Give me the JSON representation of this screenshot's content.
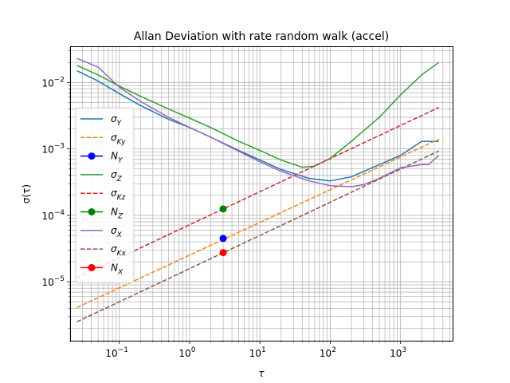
{
  "chart_data": {
    "type": "line",
    "title": "Allan Deviation with rate random walk (accel)",
    "xlabel": "τ",
    "ylabel": "σ(τ)",
    "xscale": "log",
    "yscale": "log",
    "xlim": [
      0.02,
      5500
    ],
    "ylim": [
      1.3e-06,
      0.035
    ],
    "grid": "major and minor",
    "legend_position": "center-left",
    "x_ticks": [
      {
        "v": 0.1,
        "base": "10",
        "exp": "−1"
      },
      {
        "v": 1,
        "base": "10",
        "exp": "0"
      },
      {
        "v": 10,
        "base": "10",
        "exp": "1"
      },
      {
        "v": 100,
        "base": "10",
        "exp": "2"
      },
      {
        "v": 1000,
        "base": "10",
        "exp": "3"
      }
    ],
    "y_ticks": [
      {
        "v": 1e-05,
        "base": "10",
        "exp": "−5"
      },
      {
        "v": 0.0001,
        "base": "10",
        "exp": "−4"
      },
      {
        "v": 0.001,
        "base": "10",
        "exp": "−3"
      },
      {
        "v": 0.01,
        "base": "10",
        "exp": "−2"
      }
    ],
    "series": [
      {
        "name": "σ_Y",
        "label_main": "σ",
        "label_sub": "Y",
        "color": "#1f77b4",
        "style": "solid",
        "x": [
          0.025,
          0.05,
          0.1,
          0.2,
          0.5,
          1,
          2,
          5,
          10,
          20,
          50,
          100,
          200,
          500,
          1000,
          2000,
          3500
        ],
        "y": [
          0.015,
          0.0105,
          0.0068,
          0.0045,
          0.0028,
          0.0021,
          0.0015,
          0.00095,
          0.00068,
          0.00049,
          0.00036,
          0.00033,
          0.00038,
          0.00058,
          0.0008,
          0.0013,
          0.0013
        ]
      },
      {
        "name": "σ_Ky",
        "label_main": "σ",
        "label_sub": "Ky",
        "color": "#ff7f0e",
        "style": "dashed",
        "x": [
          0.025,
          3500
        ],
        "y": [
          4.1e-06,
          0.0014
        ]
      },
      {
        "name": "N_Y",
        "label_main": "N",
        "label_sub": "Y",
        "color": "#0000ff",
        "style": "marker",
        "x": [
          3
        ],
        "y": [
          4.5e-05
        ]
      },
      {
        "name": "σ_Z",
        "label_main": "σ",
        "label_sub": "Z",
        "color": "#2ca02c",
        "style": "solid",
        "x": [
          0.025,
          0.05,
          0.1,
          0.2,
          0.5,
          1,
          2,
          5,
          10,
          20,
          40,
          60,
          100,
          200,
          500,
          1000,
          2000,
          3500
        ],
        "y": [
          0.018,
          0.013,
          0.0088,
          0.0062,
          0.004,
          0.0029,
          0.0021,
          0.0013,
          0.00095,
          0.00068,
          0.00053,
          0.00055,
          0.00072,
          0.0013,
          0.003,
          0.0065,
          0.013,
          0.02
        ]
      },
      {
        "name": "σ_Kz",
        "label_main": "σ",
        "label_sub": "Kz",
        "color": "#d62728",
        "style": "dashed",
        "x": [
          0.025,
          3500
        ],
        "y": [
          1.15e-05,
          0.0042
        ]
      },
      {
        "name": "N_Z",
        "label_main": "N",
        "label_sub": "Z",
        "color": "#008000",
        "style": "marker",
        "x": [
          3
        ],
        "y": [
          0.000125
        ]
      },
      {
        "name": "σ_X",
        "label_main": "σ",
        "label_sub": "X",
        "color": "#9467bd",
        "style": "solid",
        "x": [
          0.025,
          0.05,
          0.1,
          0.2,
          0.5,
          1,
          2,
          5,
          10,
          20,
          50,
          100,
          200,
          300,
          500,
          1000,
          2000,
          2500,
          3500
        ],
        "y": [
          0.023,
          0.017,
          0.0085,
          0.0052,
          0.003,
          0.0021,
          0.0015,
          0.00092,
          0.00064,
          0.00046,
          0.00033,
          0.00028,
          0.00027,
          0.00029,
          0.00036,
          0.00052,
          0.00058,
          0.00058,
          0.0008
        ]
      },
      {
        "name": "σ_Kx",
        "label_main": "σ",
        "label_sub": "Kx",
        "color": "#8c564b",
        "style": "dashed",
        "x": [
          0.025,
          3500
        ],
        "y": [
          2.5e-06,
          0.00093
        ]
      },
      {
        "name": "N_X",
        "label_main": "N",
        "label_sub": "X",
        "color": "#ff0000",
        "style": "marker",
        "x": [
          3
        ],
        "y": [
          2.75e-05
        ]
      }
    ]
  }
}
